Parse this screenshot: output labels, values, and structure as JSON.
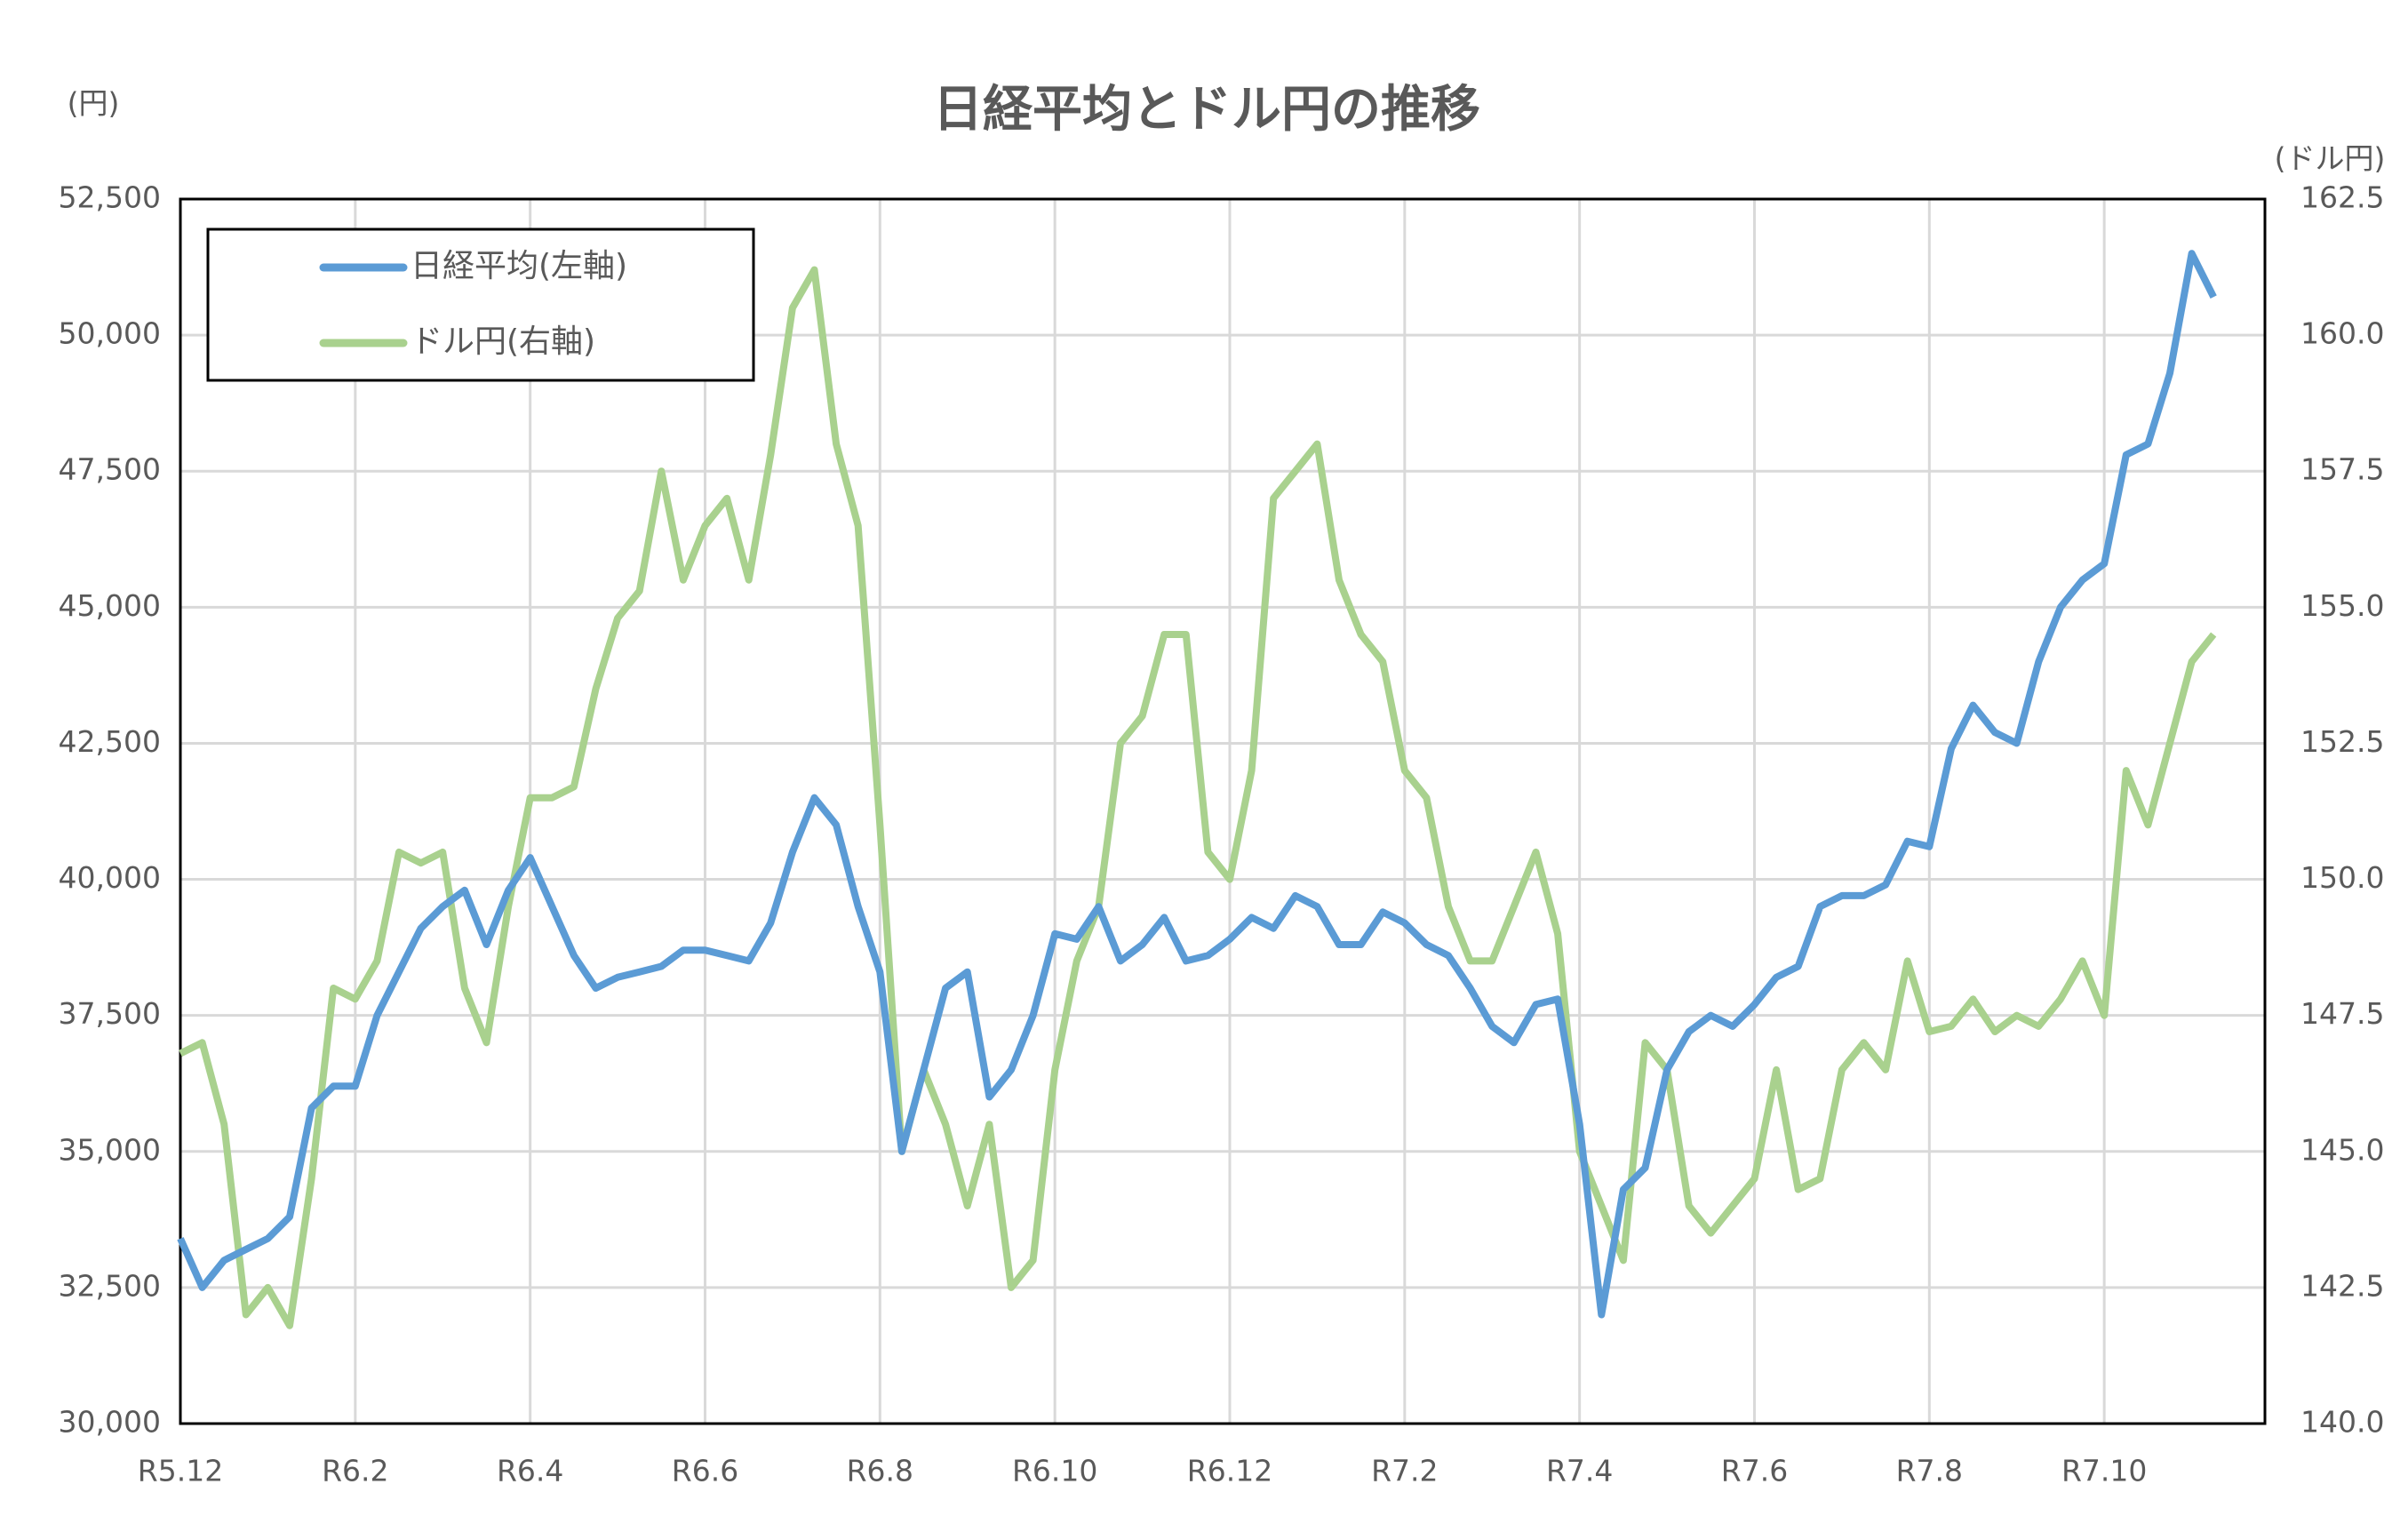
{
  "chart_data": {
    "type": "line",
    "title": "日経平均とドル円の推移",
    "ylabel": "(円)",
    "y2label": "(ドル円)",
    "categories": [
      "R5.12",
      null,
      null,
      null,
      null,
      null,
      null,
      null,
      "R6.2",
      null,
      null,
      null,
      null,
      null,
      null,
      null,
      "R6.4",
      null,
      null,
      null,
      null,
      null,
      null,
      null,
      "R6.6",
      null,
      null,
      null,
      null,
      null,
      null,
      null,
      "R6.8",
      null,
      null,
      null,
      null,
      null,
      null,
      null,
      "R6.10",
      null,
      null,
      null,
      null,
      null,
      null,
      null,
      "R6.12",
      null,
      null,
      null,
      null,
      null,
      null,
      null,
      "R7.2",
      null,
      null,
      null,
      null,
      null,
      null,
      null,
      "R7.4",
      null,
      null,
      null,
      null,
      null,
      null,
      null,
      "R7.6",
      null,
      null,
      null,
      null,
      null,
      null,
      null,
      "R7.8",
      null,
      null,
      null,
      null,
      null,
      null,
      null,
      "R7.10",
      null,
      null,
      null,
      null,
      null
    ],
    "series": [
      {
        "name": "日経平均(左軸)",
        "color": "#5b9bd5",
        "axis": "y",
        "values": [
          33400,
          32500,
          33000,
          33200,
          33400,
          33800,
          35800,
          36200,
          36200,
          37500,
          38300,
          39100,
          39500,
          39800,
          38800,
          39800,
          40400,
          39500,
          38600,
          38000,
          38200,
          38300,
          38400,
          38700,
          38700,
          38600,
          38500,
          39200,
          40500,
          41500,
          41000,
          39500,
          38300,
          35000,
          36500,
          38000,
          38300,
          36000,
          36500,
          37500,
          39000,
          38900,
          39500,
          38500,
          38800,
          39300,
          38500,
          38600,
          38900,
          39300,
          39100,
          39700,
          39500,
          38800,
          38800,
          39400,
          39200,
          38800,
          38600,
          38000,
          37300,
          37000,
          37700,
          37800,
          35500,
          32000,
          34300,
          34700,
          36500,
          37200,
          37500,
          37300,
          37700,
          38200,
          38400,
          39500,
          39700,
          39700,
          39900,
          40700,
          40600,
          42400,
          43200,
          42700,
          42500,
          44000,
          45000,
          45500,
          45800,
          47800,
          48000,
          49300,
          51500,
          50700
        ]
      },
      {
        "name": "ドル円(右軸)",
        "color": "#a9d18e",
        "axis": "y2",
        "values": [
          146.8,
          147.0,
          145.5,
          142.0,
          142.5,
          141.8,
          144.5,
          148.0,
          147.8,
          148.5,
          150.5,
          150.3,
          150.5,
          148.0,
          147.0,
          149.5,
          151.5,
          151.5,
          151.7,
          153.5,
          154.8,
          155.3,
          157.5,
          155.5,
          156.5,
          157.0,
          155.5,
          157.8,
          160.5,
          161.2,
          158.0,
          156.5,
          151.0,
          145.0,
          146.5,
          145.5,
          144.0,
          145.5,
          142.5,
          143.0,
          146.5,
          148.5,
          149.5,
          152.5,
          153.0,
          154.5,
          154.5,
          150.5,
          150.0,
          152.0,
          157.0,
          157.5,
          158.0,
          155.5,
          154.5,
          154.0,
          152.0,
          151.5,
          149.5,
          148.5,
          148.5,
          149.5,
          150.5,
          149.0,
          145.0,
          144.0,
          143.0,
          147.0,
          146.5,
          144.0,
          143.5,
          144.0,
          144.5,
          146.5,
          144.3,
          144.5,
          146.5,
          147.0,
          146.5,
          148.5,
          147.2,
          147.3,
          147.8,
          147.2,
          147.5,
          147.3,
          147.8,
          148.5,
          147.5,
          152.0,
          151.0,
          152.5,
          154.0,
          154.5
        ]
      }
    ],
    "ylim": [
      30000,
      52500
    ],
    "yticks": [
      {
        "value": 30000,
        "label": "30,000"
      },
      {
        "value": 32500,
        "label": "32,500"
      },
      {
        "value": 35000,
        "label": "35,000"
      },
      {
        "value": 37500,
        "label": "37,500"
      },
      {
        "value": 40000,
        "label": "40,000"
      },
      {
        "value": 42500,
        "label": "42,500"
      },
      {
        "value": 45000,
        "label": "45,000"
      },
      {
        "value": 47500,
        "label": "47,500"
      },
      {
        "value": 50000,
        "label": "50,000"
      },
      {
        "value": 52500,
        "label": "52,500"
      }
    ],
    "y2lim": [
      140,
      162.5
    ],
    "y2ticks": [
      {
        "value": 140,
        "label": "140.0"
      },
      142.5,
      {
        "value": 145,
        "label": "145.0"
      },
      147.5,
      {
        "value": 150,
        "label": "150.0"
      },
      152.5,
      {
        "value": 155,
        "label": "155.0"
      },
      157.5,
      {
        "value": 160,
        "label": "160.0"
      },
      162.5
    ],
    "grid": true,
    "legend": "upper left"
  }
}
